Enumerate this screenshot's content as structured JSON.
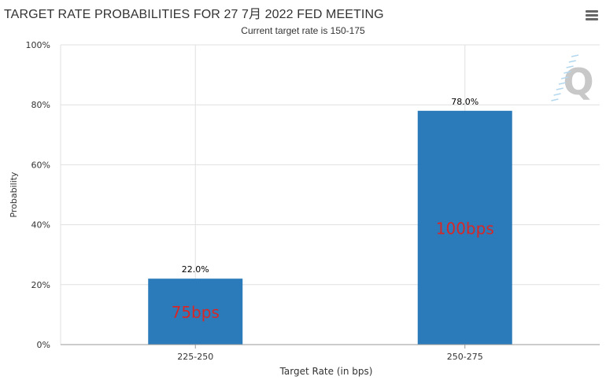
{
  "chart_data": {
    "type": "bar",
    "title": "TARGET RATE PROBABILITIES FOR 27 7月 2022 FED MEETING",
    "subtitle": "Current target rate is 150-175",
    "xlabel": "Target Rate (in bps)",
    "ylabel": "Probability",
    "categories": [
      "225-250",
      "250-275"
    ],
    "values": [
      22.0,
      78.0
    ],
    "data_labels": [
      "22.0%",
      "78.0%"
    ],
    "annotations": [
      "75bps",
      "100bps"
    ],
    "ylim": [
      0,
      100
    ],
    "yticks": [
      "0%",
      "20%",
      "40%",
      "60%",
      "80%",
      "100%"
    ],
    "grid": true,
    "legend": "none",
    "colors": {
      "bar": "#2b7bba",
      "annotation": "#d62728",
      "grid": "#e0e0e0",
      "axis": "#999999",
      "text": "#333333",
      "logo": "#c8c8c8",
      "logo_accent": "#b3d7ee"
    },
    "logo_text": "Q",
    "icons": {
      "menu": "hamburger-menu-icon"
    }
  }
}
